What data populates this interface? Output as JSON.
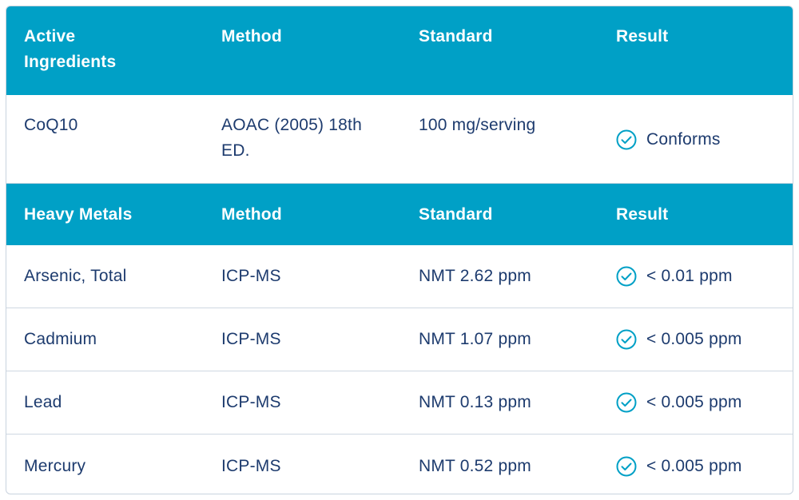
{
  "tables": [
    {
      "headers": [
        "Active\nIngredients",
        "Method",
        "Standard",
        "Result"
      ],
      "header_lines": [
        "Active",
        "Ingredients"
      ],
      "rows": [
        {
          "name": "CoQ10",
          "method_lines": [
            "AOAC (2005) 18th",
            "ED."
          ],
          "standard": "100 mg/serving",
          "result": "Conforms"
        }
      ]
    },
    {
      "headers": [
        "Heavy Metals",
        "Method",
        "Standard",
        "Result"
      ],
      "rows": [
        {
          "name": "Arsenic, Total",
          "method": "ICP-MS",
          "standard": "NMT 2.62 ppm",
          "result": "< 0.01 ppm"
        },
        {
          "name": "Cadmium",
          "method": "ICP-MS",
          "standard": "NMT 1.07 ppm",
          "result": "< 0.005 ppm"
        },
        {
          "name": "Lead",
          "method": "ICP-MS",
          "standard": "NMT 0.13 ppm",
          "result": "< 0.005 ppm"
        },
        {
          "name": "Mercury",
          "method": "ICP-MS",
          "standard": "NMT 0.52 ppm",
          "result": "< 0.005 ppm"
        }
      ]
    }
  ],
  "colors": {
    "header_bg": "#00a0c6",
    "text": "#1d3b6e",
    "check": "#00a0c6"
  },
  "icons": {
    "result_icon": "check-circle-icon"
  }
}
